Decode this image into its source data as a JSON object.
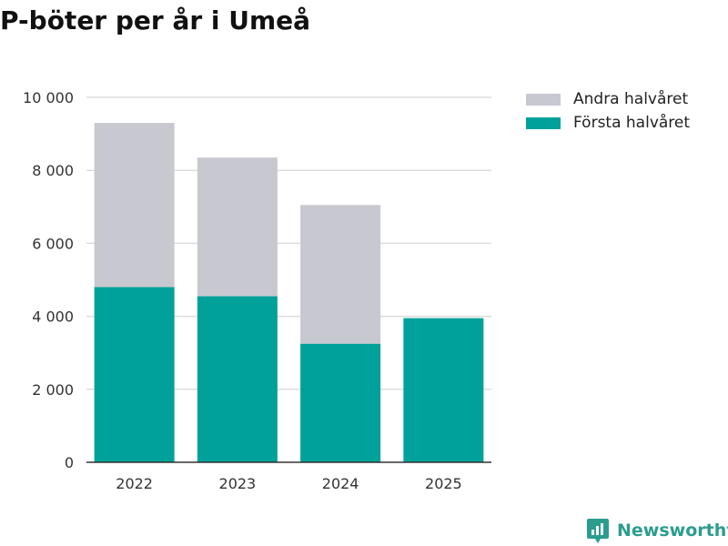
{
  "chart_data": {
    "type": "bar",
    "stacked": true,
    "title": "P-böter per år i Umeå",
    "categories": [
      "2022",
      "2023",
      "2024",
      "2025"
    ],
    "series": [
      {
        "name": "Första halvåret",
        "color": "#00a19a",
        "values": [
          4800,
          4550,
          3250,
          3950
        ]
      },
      {
        "name": "Andra halvåret",
        "color": "#c8c8d0",
        "values": [
          4500,
          3800,
          3800,
          0
        ]
      }
    ],
    "yticks": [
      0,
      2000,
      4000,
      6000,
      8000,
      10000
    ],
    "ytick_labels": [
      "0",
      "2 000",
      "4 000",
      "6 000",
      "8 000",
      "10 000"
    ],
    "ylim": [
      0,
      10000
    ],
    "xlabel": "",
    "ylabel": "",
    "grid": true,
    "legend_position": "top-right"
  },
  "legend": {
    "items": [
      {
        "label": "Andra halvåret",
        "color": "#c8c8d0"
      },
      {
        "label": "Första halvåret",
        "color": "#00a19a"
      }
    ]
  },
  "brand": {
    "name": "Newsworthy",
    "icon": "newsworthy-logo-icon",
    "color": "#2a9d8f"
  }
}
